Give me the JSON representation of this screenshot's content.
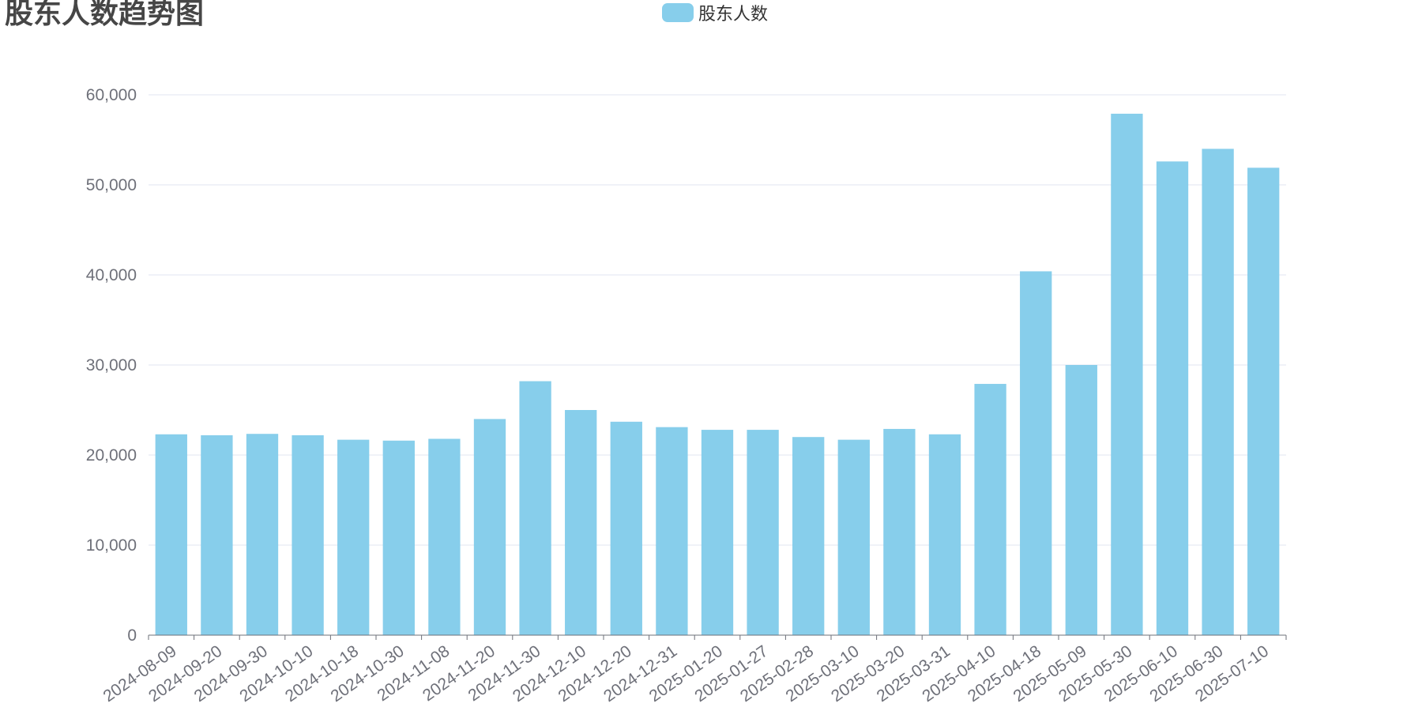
{
  "chart_data": {
    "type": "bar",
    "title": "股东人数趋势图",
    "xlabel": "",
    "ylabel": "",
    "ylim": [
      0,
      60000
    ],
    "yticks": [
      0,
      10000,
      20000,
      30000,
      40000,
      50000,
      60000
    ],
    "ytick_labels": [
      "0",
      "10,000",
      "20,000",
      "30,000",
      "40,000",
      "50,000",
      "60,000"
    ],
    "grid": true,
    "legend_position": "top-center",
    "categories": [
      "2024-08-09",
      "2024-09-20",
      "2024-09-30",
      "2024-10-10",
      "2024-10-18",
      "2024-10-30",
      "2024-11-08",
      "2024-11-20",
      "2024-11-30",
      "2024-12-10",
      "2024-12-20",
      "2024-12-31",
      "2025-01-20",
      "2025-01-27",
      "2025-02-28",
      "2025-03-10",
      "2025-03-20",
      "2025-03-31",
      "2025-04-10",
      "2025-04-18",
      "2025-05-09",
      "2025-05-30",
      "2025-06-10",
      "2025-06-30",
      "2025-07-10"
    ],
    "series": [
      {
        "name": "股东人数",
        "color": "#87ceeb",
        "values": [
          22300,
          22200,
          22350,
          22200,
          21700,
          21600,
          21800,
          24000,
          28200,
          25000,
          23700,
          23100,
          22800,
          22800,
          22000,
          21700,
          22900,
          22300,
          27900,
          40400,
          30000,
          57900,
          52600,
          54000,
          51900
        ]
      }
    ]
  }
}
